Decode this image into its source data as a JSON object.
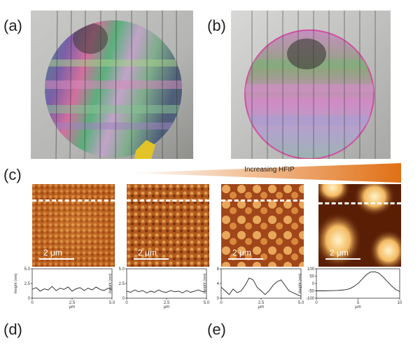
{
  "panel_labels": {
    "a": "(a)",
    "b": "(b)",
    "c": "(c)",
    "d": "(d)",
    "e": "(e)"
  },
  "gradient_label": "Increasing HFIP",
  "scale_bar_text": "2 μm",
  "profiles": [
    {
      "xticks": [
        "0",
        "2.5",
        "5.0"
      ],
      "yticks": [
        "0",
        "2.5",
        "5.0"
      ],
      "xmax": 5,
      "ymin": 0,
      "ymax": 5,
      "xlabel": "μm",
      "ylabel": "Height (nm)",
      "x": [
        0,
        0.25,
        0.5,
        0.75,
        1,
        1.25,
        1.5,
        1.75,
        2,
        2.25,
        2.5,
        2.75,
        3,
        3.25,
        3.5,
        3.75,
        4,
        4.25,
        4.5,
        4.75,
        5
      ],
      "y": [
        1.5,
        1.8,
        1.2,
        1.6,
        1.4,
        2.0,
        1.3,
        1.7,
        1.5,
        1.9,
        1.2,
        1.6,
        1.8,
        1.3,
        1.7,
        1.4,
        1.9,
        1.5,
        1.3,
        1.7,
        1.5
      ]
    },
    {
      "xticks": [
        "0",
        "2.5",
        "5.0"
      ],
      "yticks": [
        "0",
        "2.5",
        "5.0"
      ],
      "xmax": 5,
      "ymin": 0,
      "ymax": 5,
      "xlabel": "μm",
      "ylabel": "Height (nm)",
      "x": [
        0,
        0.25,
        0.5,
        0.75,
        1,
        1.25,
        1.5,
        1.75,
        2,
        2.25,
        2.5,
        2.75,
        3,
        3.25,
        3.5,
        3.75,
        4,
        4.25,
        4.5,
        4.75,
        5
      ],
      "y": [
        1.2,
        1.0,
        1.4,
        1.1,
        1.3,
        0.9,
        1.2,
        1.0,
        1.4,
        1.1,
        1.0,
        1.3,
        1.1,
        1.2,
        0.9,
        1.3,
        1.0,
        1.2,
        1.4,
        1.1,
        1.2
      ]
    },
    {
      "xticks": [
        "0",
        "2.5",
        "5.0"
      ],
      "yticks": [
        "0",
        "4",
        "8"
      ],
      "xmax": 5,
      "ymin": 0,
      "ymax": 8,
      "xlabel": "μm",
      "ylabel": "Height (nm)",
      "x": [
        0,
        0.25,
        0.5,
        0.75,
        1,
        1.25,
        1.5,
        1.75,
        2,
        2.25,
        2.5,
        2.75,
        3,
        3.25,
        3.5,
        3.75,
        4,
        4.25,
        4.5,
        4.75,
        5
      ],
      "y": [
        3,
        2,
        1,
        2.5,
        1.5,
        2,
        3.5,
        5.5,
        5,
        3,
        2,
        1,
        2,
        3.5,
        4.5,
        5,
        3.5,
        2,
        1.5,
        1,
        0.5
      ]
    },
    {
      "xticks": [
        "0",
        "5",
        "10"
      ],
      "yticks": [
        "-100",
        "-50",
        "0",
        "50",
        "100"
      ],
      "xmax": 10,
      "ymin": -100,
      "ymax": 100,
      "xlabel": "μm",
      "ylabel": "Height (nm)",
      "x": [
        0,
        0.5,
        1,
        1.5,
        2,
        2.5,
        3,
        3.5,
        4,
        4.5,
        5,
        5.5,
        6,
        6.5,
        7,
        7.5,
        8,
        8.5,
        9,
        9.5,
        10
      ],
      "y": [
        -50,
        -50,
        -50,
        -49,
        -48,
        -47,
        -45,
        -42,
        -35,
        -20,
        0,
        30,
        60,
        78,
        80,
        70,
        45,
        15,
        -15,
        -40,
        -55
      ]
    }
  ],
  "colors": {
    "afm_dark": "#5a1e05",
    "afm_mid": "#c0631c",
    "afm_light": "#f1c27a",
    "gradient_end": "#e07015"
  }
}
